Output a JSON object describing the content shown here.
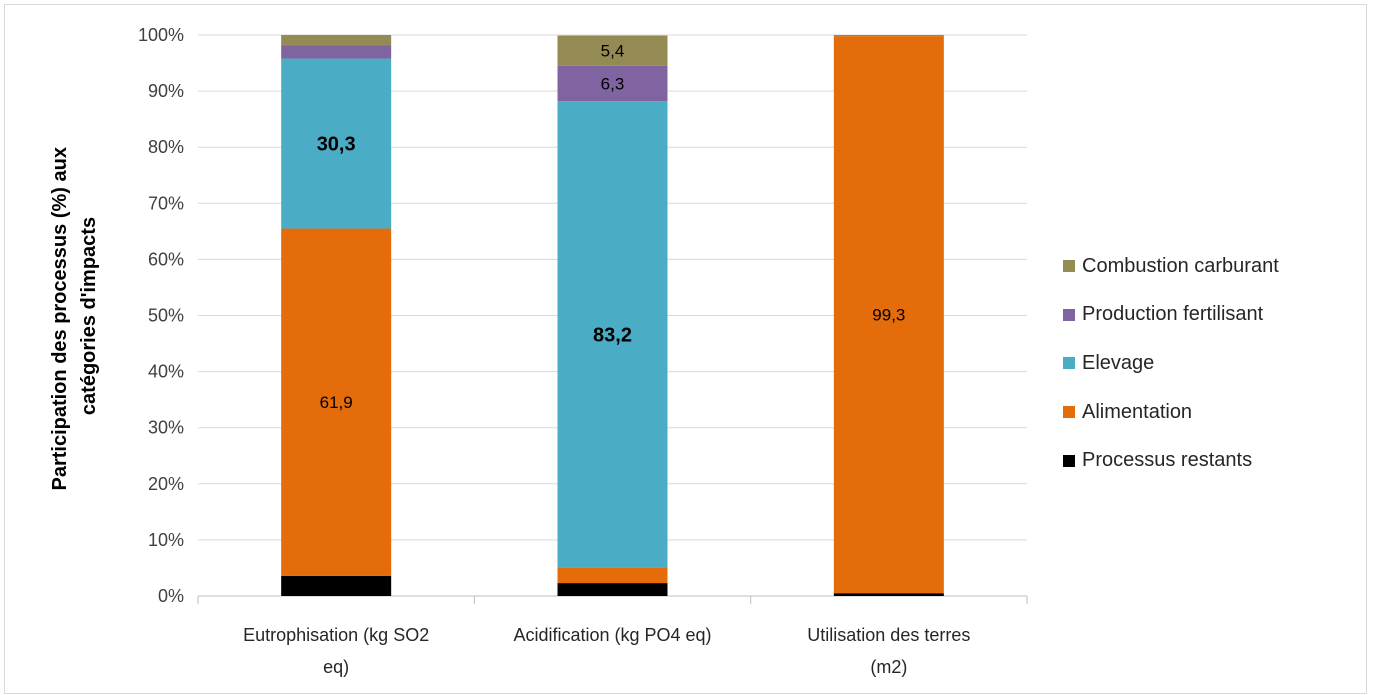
{
  "chart_data": {
    "type": "bar",
    "stacked": true,
    "ylabel": "Participation des processus (%) aux catégories d'impacts",
    "ylabel_lines": [
      "Participation des processus (%) aux",
      "catégories d'impacts"
    ],
    "xlabel": "",
    "ylim": [
      0,
      100
    ],
    "yticks": [
      "0%",
      "10%",
      "20%",
      "30%",
      "40%",
      "50%",
      "60%",
      "70%",
      "80%",
      "90%",
      "100%"
    ],
    "categories": [
      "Eutrophisation (kg SO2 eq)",
      "Acidification (kg PO4 eq)",
      "Utilisation des terres (m2)"
    ],
    "category_lines": [
      [
        "Eutrophisation (kg SO2",
        "eq)"
      ],
      [
        "Acidification (kg PO4 eq)"
      ],
      [
        "Utilisation des terres",
        "(m2)"
      ]
    ],
    "grid": true,
    "legend_position": "right",
    "series": [
      {
        "name": "Processus restants",
        "color": "#000000",
        "values": [
          3.6,
          2.3,
          0.5
        ],
        "labels": [
          "",
          "",
          ""
        ]
      },
      {
        "name": "Alimentation",
        "color": "#E46C0A",
        "values": [
          61.9,
          2.7,
          99.3
        ],
        "labels": [
          "61,9",
          "",
          "99,3"
        ]
      },
      {
        "name": "Elevage",
        "color": "#4BACC6",
        "values": [
          30.3,
          83.2,
          0
        ],
        "labels": [
          "30,3",
          "83,2",
          ""
        ]
      },
      {
        "name": "Production fertilisant",
        "color": "#8064A2",
        "values": [
          2.4,
          6.3,
          0
        ],
        "labels": [
          "",
          "6,3",
          ""
        ]
      },
      {
        "name": "Combustion carburant",
        "color": "#948A54",
        "values": [
          1.8,
          5.4,
          0.2
        ],
        "labels": [
          "",
          "5,4",
          ""
        ]
      }
    ],
    "label_styles": [
      "bold",
      "normal",
      "bold"
    ]
  }
}
